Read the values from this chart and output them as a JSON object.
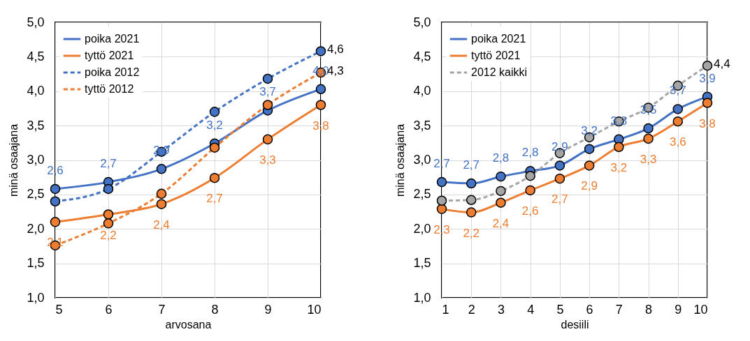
{
  "chart_data": [
    {
      "type": "line",
      "xlabel": "arvosana",
      "ylabel": "minä osaajana",
      "x": [
        5,
        6,
        7,
        8,
        9,
        10
      ],
      "xlim": [
        5,
        10
      ],
      "xticks": [
        5,
        6,
        7,
        8,
        9,
        10
      ],
      "ylim": [
        1,
        5
      ],
      "yticks": [
        {
          "value": 1,
          "label": "1,0"
        },
        {
          "value": 1.5,
          "label": "1,5"
        },
        {
          "value": 2,
          "label": "2,0"
        },
        {
          "value": 2.5,
          "label": "2,5"
        },
        {
          "value": 3,
          "label": "3,0"
        },
        {
          "value": 3.5,
          "label": "3,5"
        },
        {
          "value": 4,
          "label": "4,0"
        },
        {
          "value": 4.5,
          "label": "4,5"
        },
        {
          "value": 5,
          "label": "5,0"
        }
      ],
      "grid": true,
      "legend": "top left",
      "marker": "circle",
      "series": [
        {
          "name": "poika 2021",
          "color": "#4472c4",
          "line_style": "solid",
          "values": [
            2.58,
            2.68,
            2.87,
            3.24,
            3.72,
            4.03
          ],
          "value_labels": [
            "2,6",
            "2,7",
            "2,9",
            "3,2",
            "3,7",
            "4,0"
          ]
        },
        {
          "name": "tyttö 2021",
          "color": "#ed7d31",
          "line_style": "solid",
          "values": [
            2.1,
            2.21,
            2.36,
            2.74,
            3.3,
            3.8
          ],
          "value_labels": [
            "2,1",
            "2,2",
            "2,4",
            "2,7",
            "3,3",
            "3,8"
          ]
        },
        {
          "name": "poika 2012",
          "color": "#4472c4",
          "line_style": "dashed",
          "values": [
            2.4,
            2.58,
            3.12,
            3.7,
            4.18,
            4.58
          ],
          "value_labels": [
            null,
            null,
            null,
            null,
            null,
            "4,6"
          ]
        },
        {
          "name": "tyttö 2012",
          "color": "#ed7d31",
          "line_style": "dashed",
          "values": [
            1.76,
            2.08,
            2.51,
            3.18,
            3.8,
            4.27
          ],
          "value_labels": [
            null,
            null,
            null,
            null,
            null,
            "4,3"
          ]
        }
      ]
    },
    {
      "type": "line",
      "xlabel": "desiili",
      "ylabel": "minä osaajana",
      "x": [
        1,
        2,
        3,
        4,
        5,
        6,
        7,
        8,
        9,
        10
      ],
      "xlim": [
        1,
        10
      ],
      "xticks": [
        1,
        2,
        3,
        4,
        5,
        6,
        7,
        8,
        9,
        10
      ],
      "ylim": [
        1,
        5
      ],
      "yticks": [
        {
          "value": 1,
          "label": "1,0"
        },
        {
          "value": 1.5,
          "label": "1,5"
        },
        {
          "value": 2,
          "label": "2,0"
        },
        {
          "value": 2.5,
          "label": "2,5"
        },
        {
          "value": 3,
          "label": "3,0"
        },
        {
          "value": 3.5,
          "label": "3,5"
        },
        {
          "value": 4,
          "label": "4,0"
        },
        {
          "value": 4.5,
          "label": "4,5"
        },
        {
          "value": 5,
          "label": "5,0"
        }
      ],
      "grid": true,
      "legend": "top left",
      "marker": "circle",
      "series": [
        {
          "name": "poika 2021",
          "color": "#4472c4",
          "line_style": "solid",
          "values": [
            2.68,
            2.66,
            2.76,
            2.84,
            2.92,
            3.16,
            3.3,
            3.46,
            3.74,
            3.92
          ],
          "value_labels": [
            "2,7",
            "2,7",
            "2,8",
            "2,8",
            "2,9",
            "3,2",
            "3,3",
            "3,5",
            "3,7",
            "3,9"
          ]
        },
        {
          "name": "tyttö 2021",
          "color": "#ed7d31",
          "line_style": "solid",
          "values": [
            2.29,
            2.24,
            2.38,
            2.56,
            2.73,
            2.92,
            3.19,
            3.31,
            3.56,
            3.83
          ],
          "value_labels": [
            "2,3",
            "2,2",
            "2,4",
            "2,6",
            "2,7",
            "2,9",
            "3,2",
            "3,3",
            "3,6",
            "3,8"
          ]
        },
        {
          "name": "2012 kaikki",
          "color": "#a5a5a5",
          "line_style": "dashed",
          "values": [
            2.41,
            2.42,
            2.55,
            2.77,
            3.1,
            3.33,
            3.56,
            3.76,
            4.08,
            4.37
          ],
          "value_labels": [
            null,
            null,
            null,
            null,
            null,
            null,
            null,
            null,
            null,
            "4,4"
          ]
        }
      ]
    }
  ]
}
